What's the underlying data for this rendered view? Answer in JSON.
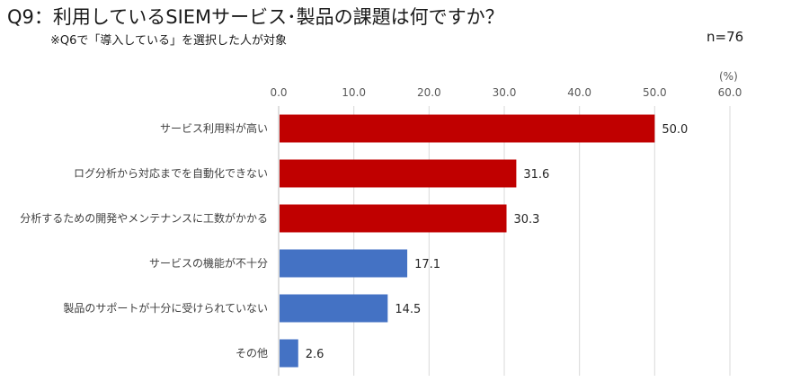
{
  "title": "Q9：利用しているSIEMサービス･製品の課題は何ですか？",
  "subtitle": "※Q6で「導入している」を選択した人が対象",
  "sample_size": "n=76",
  "colors": {
    "highlight": "#C00000",
    "normal": "#4472C4",
    "grid": "#D9D9D9",
    "axis": "#BFBFBF"
  },
  "chart_data": {
    "type": "bar",
    "orientation": "horizontal",
    "title": "Q9：利用しているSIEMサービス･製品の課題は何ですか？",
    "unit_label": "(%)",
    "xlim": [
      0,
      60
    ],
    "ticks": [
      "0.0",
      "10.0",
      "20.0",
      "30.0",
      "40.0",
      "50.0",
      "60.0"
    ],
    "tick_values": [
      0,
      10,
      20,
      30,
      40,
      50,
      60
    ],
    "grid": true,
    "categories": [
      "サービス利用料が高い",
      "ログ分析から対応までを自動化できない",
      "分析するための開発やメンテナンスに工数がかかる",
      "サービスの機能が不十分",
      "製品のサポートが十分に受けられていない",
      "その他"
    ],
    "values": [
      50.0,
      31.6,
      30.3,
      17.1,
      14.5,
      2.6
    ],
    "value_labels": [
      "50.0",
      "31.6",
      "30.3",
      "17.1",
      "14.5",
      "2.6"
    ],
    "bar_colors": [
      "#C00000",
      "#C00000",
      "#C00000",
      "#4472C4",
      "#4472C4",
      "#4472C4"
    ]
  }
}
